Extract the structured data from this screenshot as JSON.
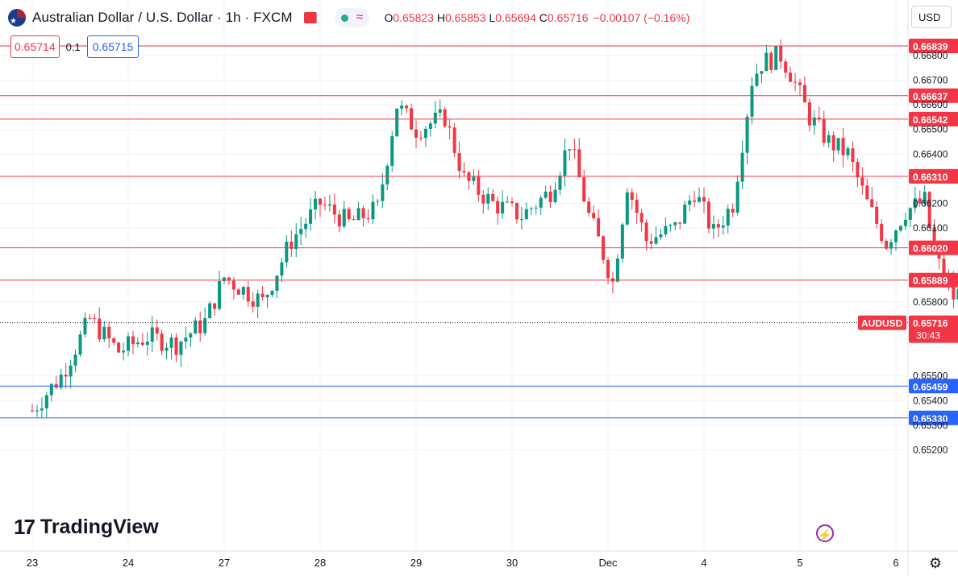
{
  "header": {
    "title": "Australian Dollar / U.S. Dollar · 1h · FXCM",
    "ohlc": {
      "open_label": "O",
      "open": "0.65823",
      "high_label": "H",
      "high": "0.65853",
      "low_label": "L",
      "low": "0.65694",
      "close_label": "C",
      "close": "0.65716",
      "change": "−0.00107 (−0.16%)"
    }
  },
  "trade_widget": {
    "sell": "0.65714",
    "spread": "0.1",
    "buy": "0.65715"
  },
  "currency_selector": "USD",
  "branding": "TradingView",
  "colors": {
    "up": "#089981",
    "down": "#f23645",
    "resistance": "#f23645",
    "support": "#2962ff",
    "grid": "#f0f3fa"
  },
  "chart_data": {
    "type": "candlestick",
    "symbol": "AUDUSD",
    "interval": "1h",
    "ylim": [
      0.6515,
      0.669
    ],
    "y_ticks": [
      "0.66800",
      "0.66700",
      "0.66600",
      "0.66500",
      "0.66400",
      "0.66200",
      "0.66100",
      "0.65800",
      "0.65500",
      "0.65400",
      "0.65300",
      "0.65200"
    ],
    "x_ticks": [
      "23",
      "24",
      "27",
      "28",
      "29",
      "30",
      "Dec",
      "4",
      "5",
      "6"
    ],
    "x_tick_bars": [
      0,
      20,
      40,
      60,
      80,
      100,
      120,
      140,
      160,
      180
    ],
    "last_price": {
      "label": "AUDUSD",
      "value": "0.65716",
      "countdown": "30:43"
    },
    "horizontal_levels": [
      {
        "value": 0.66839,
        "label": "0.66839",
        "kind": "resistance"
      },
      {
        "value": 0.66637,
        "label": "0.66637",
        "kind": "resistance"
      },
      {
        "value": 0.66542,
        "label": "0.66542",
        "kind": "resistance"
      },
      {
        "value": 0.6631,
        "label": "0.66310",
        "kind": "resistance"
      },
      {
        "value": 0.6602,
        "label": "0.66020",
        "kind": "resistance"
      },
      {
        "value": 0.65889,
        "label": "0.65889",
        "kind": "resistance"
      },
      {
        "value": 0.65715,
        "label": "0.65715",
        "kind": "buy"
      },
      {
        "value": 0.65459,
        "label": "0.65459",
        "kind": "support"
      },
      {
        "value": 0.6533,
        "label": "0.65330",
        "kind": "support"
      }
    ],
    "close_path": [
      [
        0,
        0.6536
      ],
      [
        6,
        0.655
      ],
      [
        12,
        0.6573
      ],
      [
        18,
        0.656
      ],
      [
        24,
        0.6566
      ],
      [
        30,
        0.6563
      ],
      [
        36,
        0.6572
      ],
      [
        40,
        0.659
      ],
      [
        44,
        0.6585
      ],
      [
        48,
        0.658
      ],
      [
        54,
        0.6605
      ],
      [
        60,
        0.662
      ],
      [
        66,
        0.6612
      ],
      [
        72,
        0.6618
      ],
      [
        76,
        0.666
      ],
      [
        80,
        0.665
      ],
      [
        86,
        0.6655
      ],
      [
        90,
        0.663
      ],
      [
        96,
        0.662
      ],
      [
        102,
        0.6615
      ],
      [
        108,
        0.6625
      ],
      [
        112,
        0.6645
      ],
      [
        116,
        0.6615
      ],
      [
        118,
        0.6605
      ],
      [
        121,
        0.6588
      ],
      [
        124,
        0.6628
      ],
      [
        128,
        0.6605
      ],
      [
        134,
        0.661
      ],
      [
        138,
        0.6625
      ],
      [
        142,
        0.6608
      ],
      [
        146,
        0.662
      ],
      [
        150,
        0.667
      ],
      [
        152,
        0.6677
      ],
      [
        156,
        0.668
      ],
      [
        158,
        0.6673
      ],
      [
        162,
        0.6655
      ],
      [
        166,
        0.6645
      ],
      [
        170,
        0.664
      ],
      [
        174,
        0.662
      ],
      [
        178,
        0.6604
      ],
      [
        182,
        0.6617
      ],
      [
        186,
        0.6621
      ],
      [
        188,
        0.66
      ],
      [
        190,
        0.659
      ],
      [
        192,
        0.6582
      ],
      [
        194,
        0.6585
      ],
      [
        196,
        0.6572
      ]
    ]
  }
}
